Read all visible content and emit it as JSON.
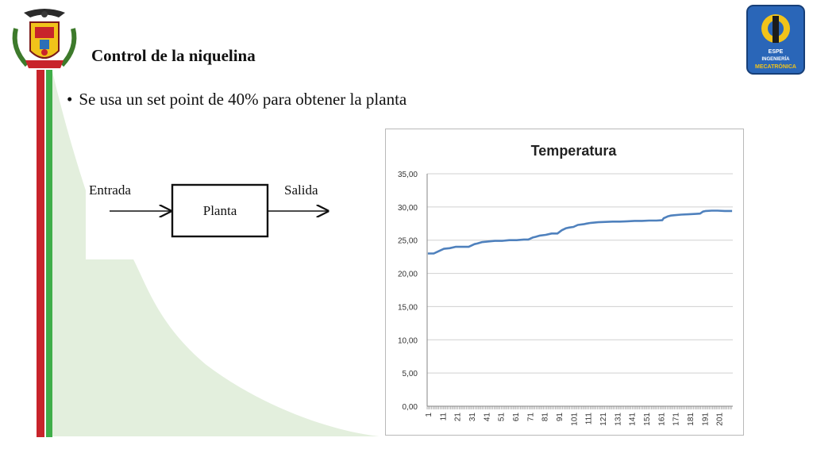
{
  "slide": {
    "title": "Control de la niquelina",
    "bullet": "Se usa un set point de 40% para obtener la planta"
  },
  "logos": {
    "left": "Escudo / coat of arms",
    "right_lines": [
      "ESPE",
      "INGENIERÍA",
      "MECATRÓNICA"
    ]
  },
  "colors": {
    "stripe_red": "#c8242b",
    "stripe_green": "#3fae49",
    "decor_green": "#e3efdd",
    "series_blue": "#4f81bd"
  },
  "diagram": {
    "input_label": "Entrada",
    "block_label": "Planta",
    "output_label": "Salida"
  },
  "chart_data": {
    "type": "line",
    "title": "Temperatura",
    "xlabel": "",
    "ylabel": "",
    "ylim": [
      0,
      35
    ],
    "yticks": [
      "0,00",
      "5,00",
      "10,00",
      "15,00",
      "20,00",
      "25,00",
      "30,00",
      "35,00"
    ],
    "x_tick_labels": [
      "1",
      "11",
      "21",
      "31",
      "41",
      "51",
      "61",
      "71",
      "81",
      "91",
      "101",
      "111",
      "121",
      "131",
      "141",
      "151",
      "161",
      "171",
      "181",
      "191",
      "201"
    ],
    "x_range": [
      1,
      210
    ],
    "grid": true,
    "legend": "none",
    "series": [
      {
        "x": [
          1,
          5,
          8,
          12,
          16,
          20,
          25,
          29,
          31,
          33,
          35,
          38,
          42,
          47,
          52,
          57,
          62,
          67,
          70,
          73,
          75,
          78,
          82,
          86,
          90,
          93,
          96,
          98,
          101,
          104,
          108,
          110,
          113,
          118,
          123,
          128,
          133,
          138,
          143,
          148,
          153,
          158,
          162,
          163,
          165,
          166,
          168,
          170,
          175,
          180,
          185,
          188,
          190,
          192,
          196,
          200,
          205,
          210
        ],
        "values": [
          23.0,
          23.0,
          23.3,
          23.7,
          23.8,
          24.0,
          24.0,
          24.0,
          24.2,
          24.4,
          24.5,
          24.7,
          24.8,
          24.9,
          24.9,
          25.0,
          25.0,
          25.1,
          25.1,
          25.4,
          25.5,
          25.7,
          25.8,
          26.0,
          26.0,
          26.5,
          26.8,
          26.9,
          27.0,
          27.3,
          27.4,
          27.5,
          27.6,
          27.7,
          27.75,
          27.8,
          27.8,
          27.85,
          27.9,
          27.9,
          27.95,
          27.95,
          28.0,
          28.3,
          28.5,
          28.6,
          28.7,
          28.75,
          28.85,
          28.9,
          28.95,
          29.0,
          29.3,
          29.4,
          29.45,
          29.45,
          29.4,
          29.4
        ]
      }
    ]
  }
}
